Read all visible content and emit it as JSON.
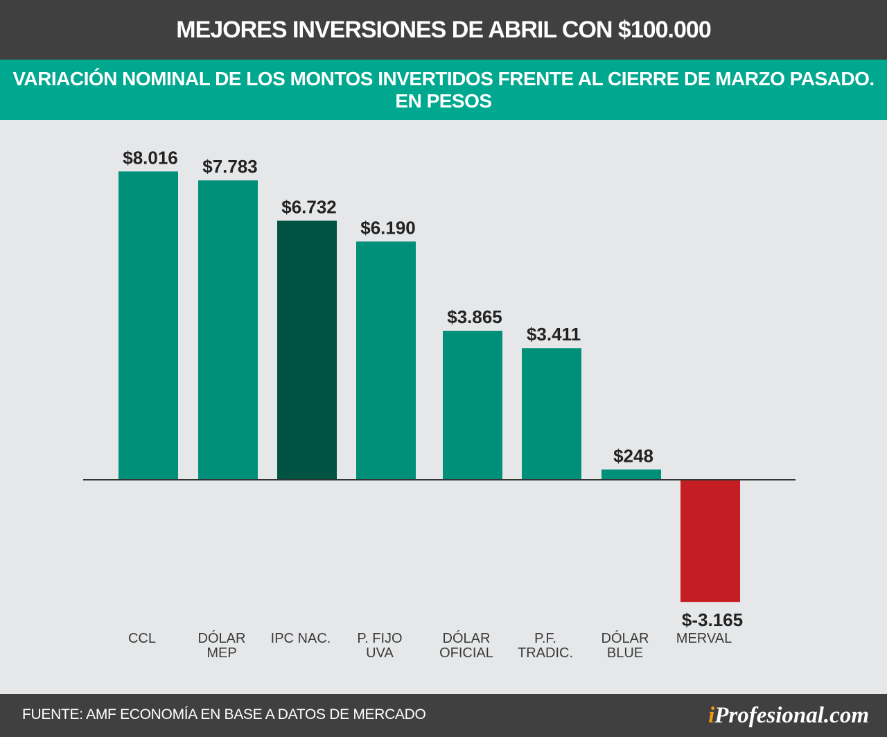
{
  "header": {
    "title": "MEJORES INVERSIONES DE ABRIL CON $100.000",
    "subtitle_line1": "VARIACIÓN NOMINAL DE LOS MONTOS INVERTIDOS FRENTE AL CIERRE DE MARZO PASADO.",
    "subtitle_line2": "EN PESOS"
  },
  "chart_data": {
    "type": "bar",
    "categories": [
      [
        "CCL"
      ],
      [
        "DÓLAR",
        "MEP"
      ],
      [
        "IPC  NAC."
      ],
      [
        "P.  FIJO",
        "UVA"
      ],
      [
        "DÓLAR",
        "OFICIAL"
      ],
      [
        "P.F.",
        "TRADIC."
      ],
      [
        "DÓLAR",
        "BLUE"
      ],
      [
        "MERVAL"
      ]
    ],
    "values": [
      8016,
      7783,
      6732,
      6190,
      3865,
      3411,
      248,
      -3165
    ],
    "value_labels": [
      "$8.016",
      "$7.783",
      "$6.732",
      "$6.190",
      "$3.865",
      "$3.411",
      "$248",
      "$-3.165"
    ],
    "bar_colors": [
      "#00907a",
      "#00907a",
      "#005243",
      "#00907a",
      "#00907a",
      "#00907a",
      "#00907a",
      "#c41e24"
    ],
    "axis_color": "#333333",
    "label_color": "#222222",
    "category_label_color": "#3a3a3a",
    "grid": false,
    "legend": "none"
  },
  "footer": {
    "source": "FUENTE: AMF ECONOMÍA EN BASE A DATOS DE MERCADO",
    "brand_i": "i",
    "brand_rest": "Profesional.com"
  }
}
